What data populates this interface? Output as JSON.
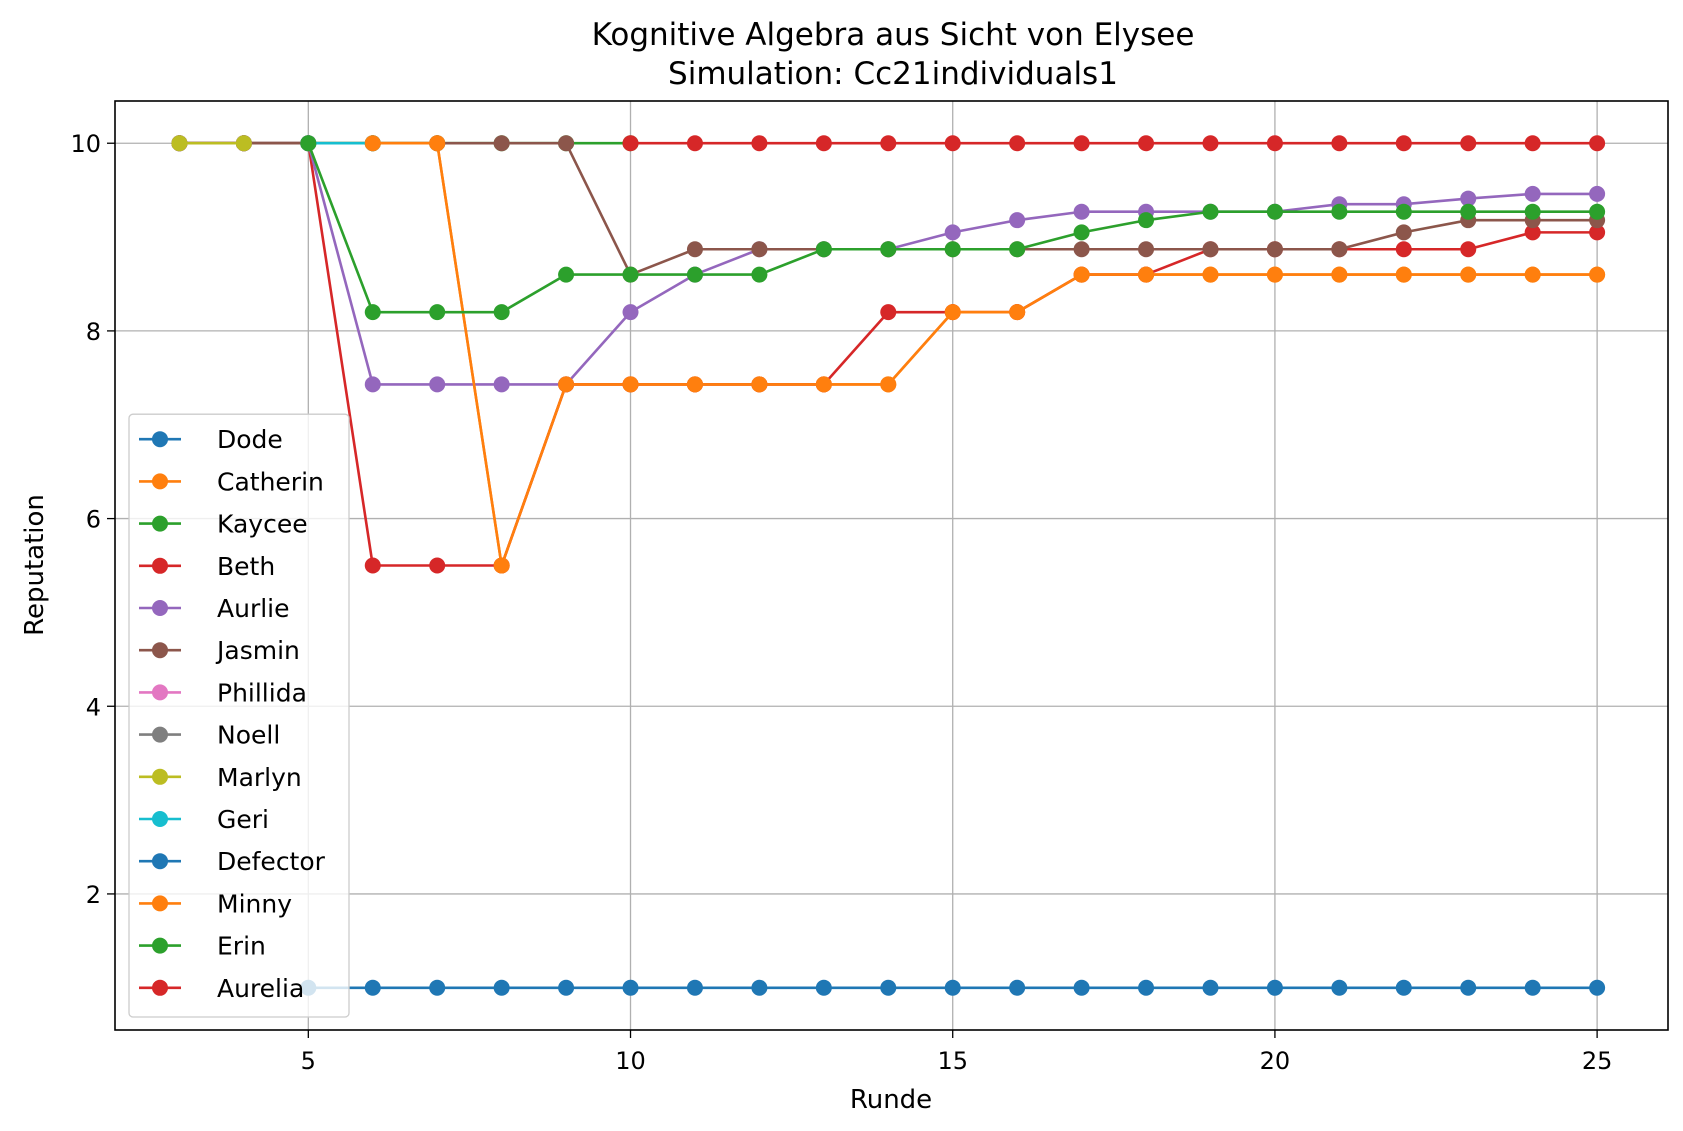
{
  "chart_data": {
    "type": "line",
    "title": "Kognitive Algebra aus Sicht von Elysee",
    "subtitle": "Simulation: Cc21individuals1",
    "xlabel": "Runde",
    "ylabel": "Reputation",
    "xlim": [
      2.0,
      26.1
    ],
    "ylim": [
      0.55,
      10.45
    ],
    "xticks": [
      5,
      10,
      15,
      20,
      25
    ],
    "yticks": [
      2,
      4,
      6,
      8,
      10
    ],
    "grid": true,
    "legend_position": "lower-left",
    "series": [
      {
        "name": "Dode",
        "color": "#1f77b4",
        "x": [
          3,
          4,
          5
        ],
        "y": [
          10,
          10,
          10
        ]
      },
      {
        "name": "Catherin",
        "color": "#ff7f0e",
        "x": [
          3,
          4,
          5,
          6,
          7,
          8,
          9,
          10,
          11,
          12,
          13,
          14,
          15,
          16,
          17,
          18,
          19,
          20,
          21,
          22,
          23,
          24,
          25
        ],
        "y": [
          10,
          10,
          10,
          10,
          10,
          5.5,
          7.43,
          7.43,
          7.43,
          7.43,
          7.43,
          7.43,
          8.2,
          8.2,
          8.6,
          8.6,
          8.6,
          8.6,
          8.6,
          8.6,
          8.6,
          8.6,
          8.6
        ]
      },
      {
        "name": "Kaycee",
        "color": "#2ca02c",
        "x": [
          3,
          4,
          5,
          6,
          7,
          8,
          9,
          10
        ],
        "y": [
          10,
          10,
          10,
          10,
          10,
          10,
          10,
          10
        ]
      },
      {
        "name": "Beth",
        "color": "#d62728",
        "x": [
          3,
          4,
          5,
          6,
          7,
          8,
          9,
          10,
          11,
          12,
          13,
          14,
          15,
          16,
          17,
          18,
          19,
          20,
          21,
          22,
          23,
          24,
          25
        ],
        "y": [
          10,
          10,
          10,
          5.5,
          5.5,
          5.5,
          7.43,
          7.43,
          7.43,
          7.43,
          7.43,
          8.2,
          8.2,
          8.2,
          8.6,
          8.6,
          8.87,
          8.87,
          8.87,
          8.87,
          8.87,
          9.05,
          9.05
        ]
      },
      {
        "name": "Aurlie",
        "color": "#9467bd",
        "x": [
          3,
          4,
          5,
          6,
          7,
          8,
          9,
          10,
          11,
          12,
          13,
          14,
          15,
          16,
          17,
          18,
          19,
          20,
          21,
          22,
          23,
          24,
          25
        ],
        "y": [
          10,
          10,
          10,
          7.43,
          7.43,
          7.43,
          7.43,
          8.2,
          8.6,
          8.87,
          8.87,
          8.87,
          9.05,
          9.18,
          9.27,
          9.27,
          9.27,
          9.27,
          9.35,
          9.35,
          9.41,
          9.46,
          9.46
        ]
      },
      {
        "name": "Jasmin",
        "color": "#8c564b",
        "x": [
          3,
          4,
          5,
          6,
          7,
          8,
          9,
          10,
          11,
          12,
          13,
          14,
          15,
          16,
          17,
          18,
          19,
          20,
          21,
          22,
          23,
          24,
          25
        ],
        "y": [
          10,
          10,
          10,
          10,
          10,
          10,
          10,
          8.6,
          8.87,
          8.87,
          8.87,
          8.87,
          8.87,
          8.87,
          8.87,
          8.87,
          8.87,
          8.87,
          8.87,
          9.05,
          9.18,
          9.18,
          9.18
        ]
      },
      {
        "name": "Phillida",
        "color": "#e377c2",
        "x": [
          3,
          4
        ],
        "y": [
          10,
          10
        ]
      },
      {
        "name": "Noell",
        "color": "#7f7f7f",
        "x": [
          3,
          4
        ],
        "y": [
          10,
          10
        ]
      },
      {
        "name": "Marlyn",
        "color": "#bcbd22",
        "x": [
          3,
          4
        ],
        "y": [
          10,
          10
        ]
      },
      {
        "name": "Geri",
        "color": "#17becf",
        "x": [
          5,
          6
        ],
        "y": [
          10,
          10
        ]
      },
      {
        "name": "Defector",
        "color": "#1f77b4",
        "x": [
          5,
          6,
          7,
          8,
          9,
          10,
          11,
          12,
          13,
          14,
          15,
          16,
          17,
          18,
          19,
          20,
          21,
          22,
          23,
          24,
          25
        ],
        "y": [
          1,
          1,
          1,
          1,
          1,
          1,
          1,
          1,
          1,
          1,
          1,
          1,
          1,
          1,
          1,
          1,
          1,
          1,
          1,
          1,
          1
        ]
      },
      {
        "name": "Minny",
        "color": "#ff7f0e",
        "x": [
          6,
          7,
          8,
          9,
          10,
          11,
          12,
          13,
          14,
          15,
          16,
          17,
          18,
          19,
          20,
          21,
          22,
          23,
          24,
          25
        ],
        "y": [
          10,
          10,
          5.5,
          7.43,
          7.43,
          7.43,
          7.43,
          7.43,
          7.43,
          8.2,
          8.2,
          8.6,
          8.6,
          8.6,
          8.6,
          8.6,
          8.6,
          8.6,
          8.6,
          8.6
        ]
      },
      {
        "name": "Erin",
        "color": "#2ca02c",
        "x": [
          5,
          6,
          7,
          8,
          9,
          10,
          11,
          12,
          13,
          14,
          15,
          16,
          17,
          18,
          19,
          20,
          21,
          22,
          23,
          24,
          25
        ],
        "y": [
          10,
          8.2,
          8.2,
          8.2,
          8.6,
          8.6,
          8.6,
          8.6,
          8.87,
          8.87,
          8.87,
          8.87,
          9.05,
          9.18,
          9.27,
          9.27,
          9.27,
          9.27,
          9.27,
          9.27,
          9.27
        ]
      },
      {
        "name": "Aurelia",
        "color": "#d62728",
        "x": [
          10,
          11,
          12,
          13,
          14,
          15,
          16,
          17,
          18,
          19,
          20,
          21,
          22,
          23,
          24,
          25
        ],
        "y": [
          10,
          10,
          10,
          10,
          10,
          10,
          10,
          10,
          10,
          10,
          10,
          10,
          10,
          10,
          10,
          10
        ]
      }
    ]
  }
}
